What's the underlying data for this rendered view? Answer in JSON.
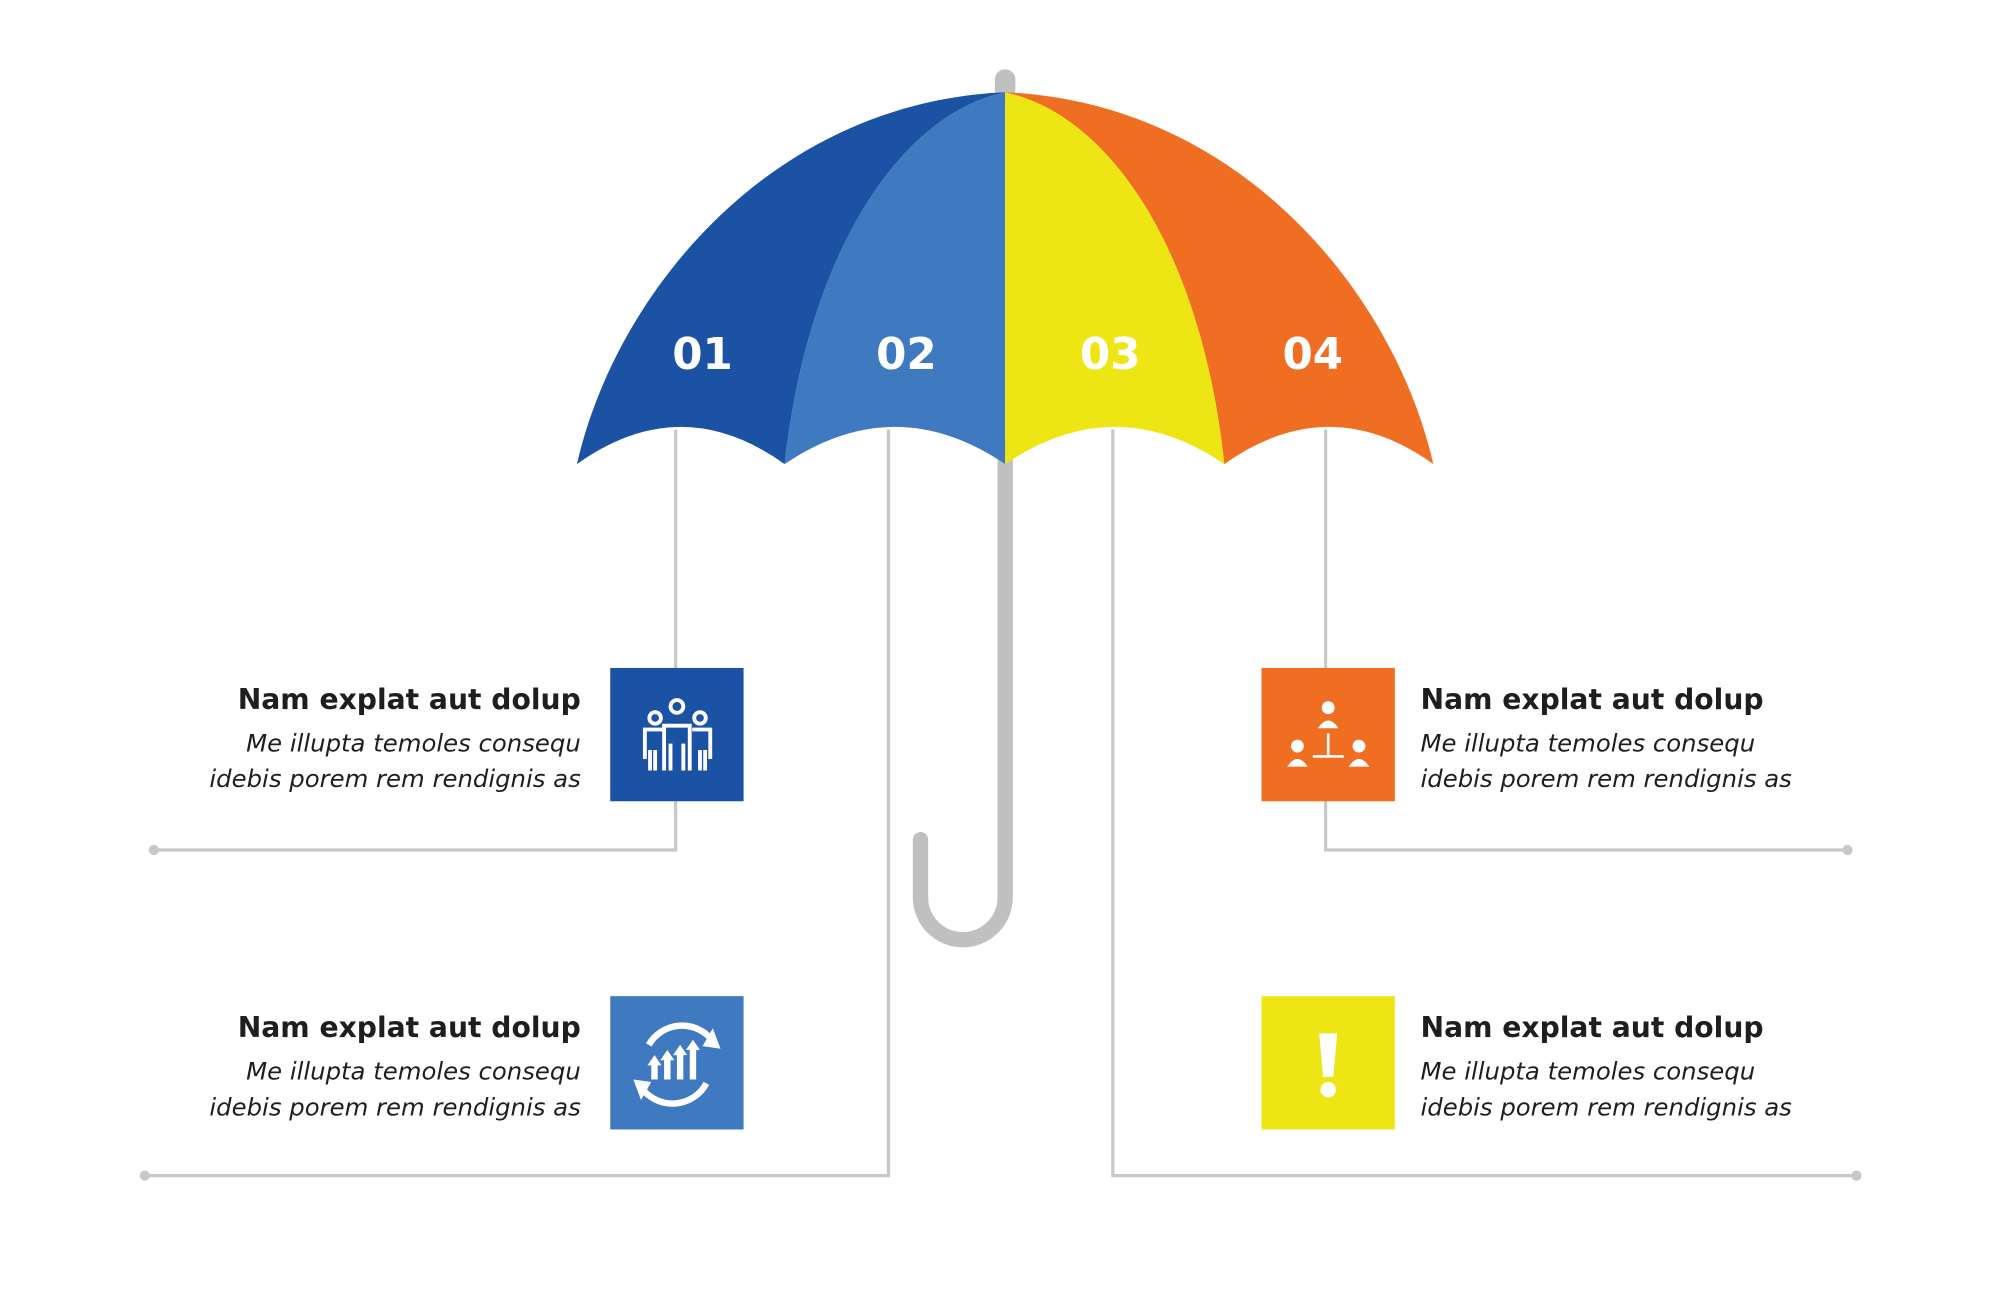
{
  "colors": {
    "panel_01": "#1c52a3",
    "panel_02": "#3f79bf",
    "panel_03": "#ede614",
    "panel_04": "#f06e22",
    "shaft": "#c0c0c0",
    "line": "#c8c8c8"
  },
  "segments": [
    {
      "number": "01",
      "title": "Nam explat aut dolup",
      "line1": "Me illupta temoles consequ",
      "line2": "idebis porem rem rendignis as",
      "icon": "people-group-icon"
    },
    {
      "number": "02",
      "title": "Nam explat aut dolup",
      "line1": "Me illupta temoles consequ",
      "line2": "idebis porem rem rendignis as",
      "icon": "cycle-growth-icon"
    },
    {
      "number": "03",
      "title": "Nam explat aut dolup",
      "line1": "Me illupta temoles consequ",
      "line2": "idebis porem rem rendignis as",
      "icon": "exclamation-icon"
    },
    {
      "number": "04",
      "title": "Nam explat aut dolup",
      "line1": "Me illupta temoles consequ",
      "line2": "idebis porem rem rendignis as",
      "icon": "hierarchy-icon"
    }
  ]
}
